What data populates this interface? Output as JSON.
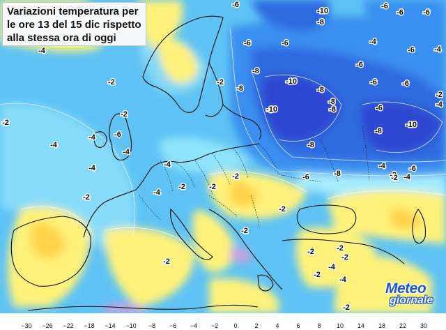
{
  "title": {
    "lines": [
      "Variazioni temperatura per",
      "le ore 13 del 15 dic rispetto",
      "alla stessa ora di oggi"
    ]
  },
  "logo": {
    "text_top": "Meteo",
    "text_bottom": "giornale",
    "color": "#1d58c8"
  },
  "legend": {
    "ticks": [
      "−30",
      "−26",
      "−22",
      "−18",
      "−14",
      "−10",
      "−8",
      "−6",
      "−4",
      "−2",
      "0",
      "2",
      "4",
      "6",
      "8",
      "10",
      "14",
      "18",
      "22",
      "30"
    ],
    "colors": [
      "#f4c7f0",
      "#d79be8",
      "#b56fd8",
      "#8c49c4",
      "#5a2fb8",
      "#2f2fa8",
      "#2f47d0",
      "#2f6ae0",
      "#3b8ff0",
      "#4fb6f8",
      "#9fe8ff",
      "#fff27a",
      "#ffd34a",
      "#ffad2e",
      "#ff8a1e",
      "#ff5f12",
      "#f03a0e",
      "#d61d10",
      "#b5100e",
      "#8a0a0a"
    ]
  },
  "map_labels": [
    {
      "text": "-4"
    },
    {
      "text": "-6"
    },
    {
      "text": "-10"
    },
    {
      "text": "-8"
    },
    {
      "text": "-6"
    },
    {
      "text": "-6"
    },
    {
      "text": "-6"
    },
    {
      "text": "-8"
    },
    {
      "text": "-6"
    },
    {
      "text": "-6"
    },
    {
      "text": "-4"
    },
    {
      "text": "-6"
    },
    {
      "text": "-6"
    },
    {
      "text": "-4"
    },
    {
      "text": "-8"
    },
    {
      "text": "-10"
    },
    {
      "text": "-8"
    },
    {
      "text": "-6"
    },
    {
      "text": "-6"
    },
    {
      "text": "-2"
    },
    {
      "text": "-2"
    },
    {
      "text": "-6"
    },
    {
      "text": "-8"
    },
    {
      "text": "-6"
    },
    {
      "text": "-10"
    },
    {
      "text": "-8"
    },
    {
      "text": "-4"
    },
    {
      "text": "-2"
    },
    {
      "text": "-4"
    },
    {
      "text": "-6"
    },
    {
      "text": "-8"
    },
    {
      "text": "-10"
    },
    {
      "text": "-2"
    },
    {
      "text": "-4"
    },
    {
      "text": "-4"
    },
    {
      "text": "-8"
    },
    {
      "text": "-4"
    },
    {
      "text": "-6"
    },
    {
      "text": "-4"
    },
    {
      "text": "-4"
    },
    {
      "text": "-6"
    },
    {
      "text": "-8"
    },
    {
      "text": "-2"
    },
    {
      "text": "-4"
    },
    {
      "text": "-2"
    },
    {
      "text": "-2"
    },
    {
      "text": "-2"
    },
    {
      "text": "-4"
    },
    {
      "text": "-2"
    },
    {
      "text": "-2"
    },
    {
      "text": "-2"
    },
    {
      "text": "-2"
    },
    {
      "text": "-2"
    },
    {
      "text": "-2"
    },
    {
      "text": "-2"
    },
    {
      "text": "-2"
    },
    {
      "text": "-4"
    },
    {
      "text": "-4"
    },
    {
      "text": "-2"
    },
    {
      "text": "-2"
    },
    {
      "text": "-2"
    },
    {
      "text": "-2"
    }
  ]
}
